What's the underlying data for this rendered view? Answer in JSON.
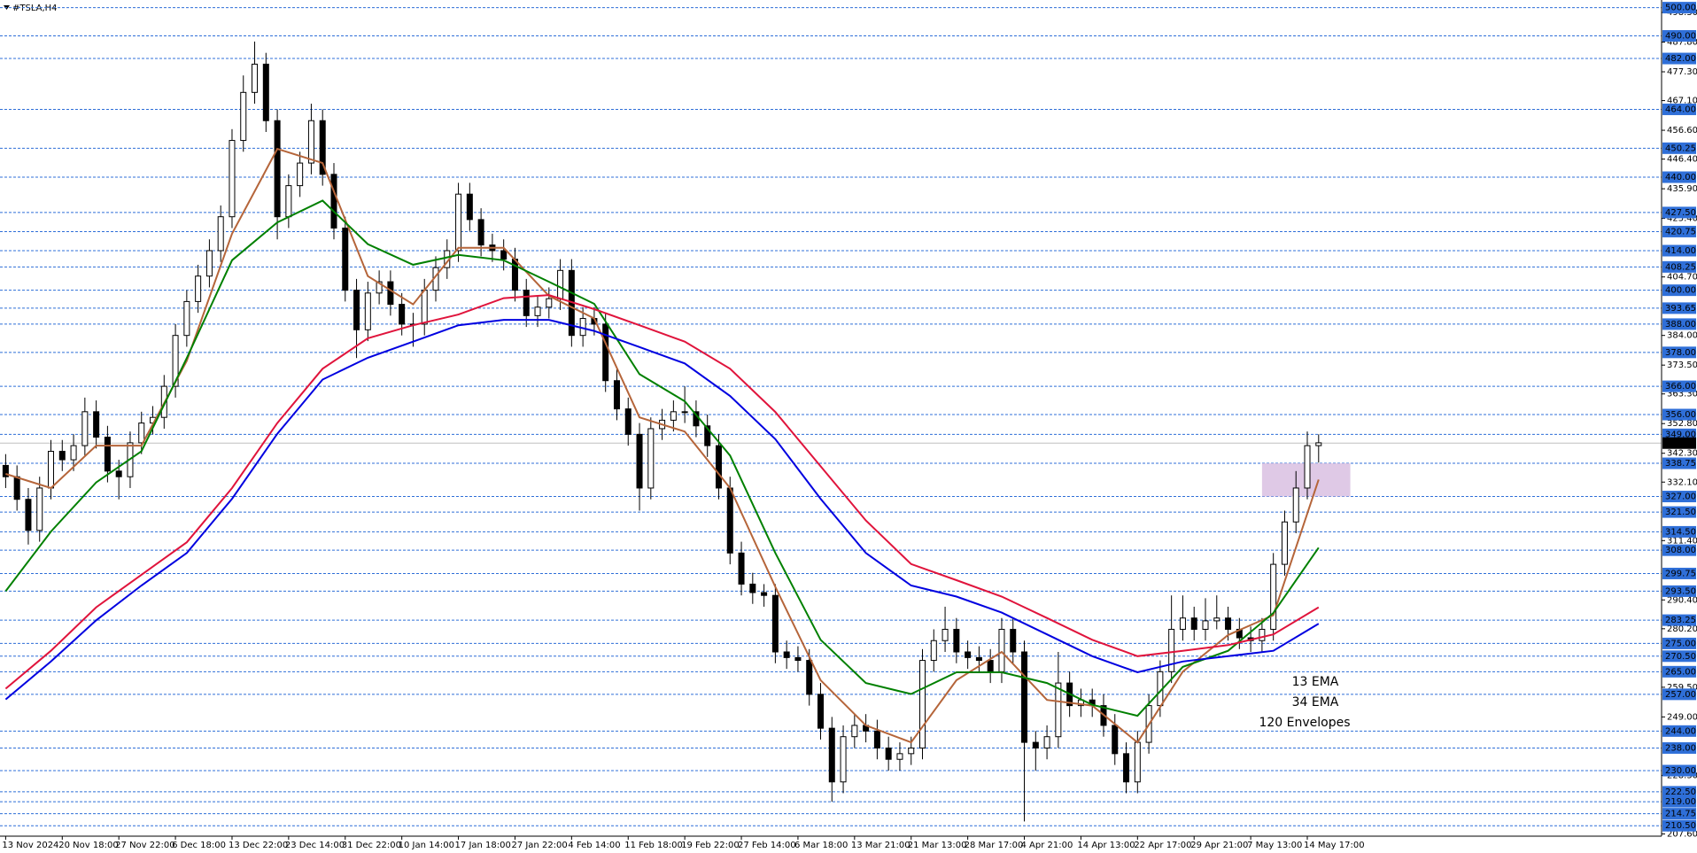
{
  "chart_data": {
    "type": "candlestick",
    "title": "#TSLA,H4",
    "categories": [
      "13 Nov 2024",
      null,
      null,
      null,
      null,
      "20 Nov 18:00",
      null,
      null,
      null,
      null,
      "27 Nov 22:00",
      null,
      null,
      null,
      null,
      "6 Dec 18:00",
      null,
      null,
      null,
      null,
      "13 Dec 22:00",
      null,
      null,
      null,
      null,
      "23 Dec 14:00",
      null,
      null,
      null,
      null,
      "31 Dec 22:00",
      null,
      null,
      null,
      null,
      "10 Jan 14:00",
      null,
      null,
      null,
      null,
      "17 Jan 18:00",
      null,
      null,
      null,
      null,
      "27 Jan 22:00",
      null,
      null,
      null,
      null,
      "4 Feb 14:00",
      null,
      null,
      null,
      null,
      "11 Feb 18:00",
      null,
      null,
      null,
      null,
      "19 Feb 22:00",
      null,
      null,
      null,
      null,
      "27 Feb 14:00",
      null,
      null,
      null,
      null,
      "6 Mar 18:00",
      null,
      null,
      null,
      null,
      "13 Mar 21:00",
      null,
      null,
      null,
      null,
      "21 Mar 13:00",
      null,
      null,
      null,
      null,
      "28 Mar 17:00",
      null,
      null,
      null,
      null,
      "4 Apr 21:00",
      null,
      null,
      null,
      null,
      "14 Apr 13:00",
      null,
      null,
      null,
      null,
      "22 Apr 17:00",
      null,
      null,
      null,
      null,
      "29 Apr 21:00",
      null,
      null,
      null,
      null,
      "7 May 13:00",
      null,
      null,
      null,
      null,
      "14 May 17:00",
      null
    ],
    "candles": [
      [
        338,
        342,
        330,
        334
      ],
      [
        334,
        338,
        322,
        326
      ],
      [
        326,
        330,
        310,
        315
      ],
      [
        315,
        334,
        311,
        330
      ],
      [
        330,
        347,
        326,
        343
      ],
      [
        343,
        347,
        336,
        340
      ],
      [
        340,
        349,
        336,
        345
      ],
      [
        345,
        362,
        341,
        357
      ],
      [
        357,
        361,
        344,
        348
      ],
      [
        348,
        352,
        332,
        336
      ],
      [
        336,
        340,
        326,
        334
      ],
      [
        334,
        350,
        330,
        346
      ],
      [
        346,
        357,
        342,
        353
      ],
      [
        353,
        359,
        349,
        355
      ],
      [
        355,
        370,
        351,
        366
      ],
      [
        366,
        388,
        362,
        384
      ],
      [
        384,
        400,
        380,
        396
      ],
      [
        396,
        409,
        392,
        405
      ],
      [
        405,
        418,
        401,
        414
      ],
      [
        414,
        430,
        410,
        426
      ],
      [
        426,
        457,
        422,
        453
      ],
      [
        453,
        476,
        449,
        470
      ],
      [
        470,
        488,
        466,
        480
      ],
      [
        480,
        484,
        456,
        460
      ],
      [
        460,
        464,
        418,
        426
      ],
      [
        426,
        441,
        422,
        437
      ],
      [
        437,
        449,
        433,
        445
      ],
      [
        445,
        466,
        441,
        460
      ],
      [
        460,
        464,
        437,
        441
      ],
      [
        441,
        445,
        418,
        422
      ],
      [
        422,
        426,
        396,
        400
      ],
      [
        400,
        404,
        376,
        386
      ],
      [
        386,
        403,
        382,
        399
      ],
      [
        399,
        407,
        395,
        403
      ],
      [
        403,
        407,
        391,
        395
      ],
      [
        395,
        399,
        384,
        388
      ],
      [
        388,
        392,
        380,
        388
      ],
      [
        388,
        404,
        384,
        400
      ],
      [
        400,
        412,
        396,
        408
      ],
      [
        408,
        418,
        404,
        414
      ],
      [
        414,
        438,
        410,
        434
      ],
      [
        434,
        438,
        421,
        425
      ],
      [
        425,
        429,
        412,
        416
      ],
      [
        416,
        420,
        410,
        414
      ],
      [
        414,
        418,
        407,
        411
      ],
      [
        411,
        415,
        396,
        400
      ],
      [
        400,
        404,
        387,
        391
      ],
      [
        391,
        398,
        387,
        394
      ],
      [
        394,
        401,
        390,
        397
      ],
      [
        397,
        411,
        393,
        407
      ],
      [
        407,
        411,
        380,
        384
      ],
      [
        384,
        394,
        380,
        390
      ],
      [
        390,
        394,
        384,
        388
      ],
      [
        388,
        392,
        364,
        368
      ],
      [
        368,
        372,
        354,
        358
      ],
      [
        358,
        362,
        345,
        349
      ],
      [
        349,
        353,
        322,
        330
      ],
      [
        330,
        355,
        326,
        351
      ],
      [
        351,
        358,
        347,
        354
      ],
      [
        354,
        361,
        350,
        357
      ],
      [
        357,
        366,
        353,
        357
      ],
      [
        357,
        361,
        348,
        352
      ],
      [
        352,
        356,
        341,
        345
      ],
      [
        345,
        349,
        326,
        330
      ],
      [
        330,
        334,
        303,
        307
      ],
      [
        307,
        311,
        292,
        296
      ],
      [
        296,
        300,
        289,
        293
      ],
      [
        293,
        296,
        288,
        292
      ],
      [
        292,
        296,
        268,
        272
      ],
      [
        272,
        276,
        266,
        270
      ],
      [
        270,
        274,
        265,
        269
      ],
      [
        269,
        273,
        253,
        257
      ],
      [
        257,
        261,
        241,
        245
      ],
      [
        245,
        249,
        219,
        226
      ],
      [
        226,
        246,
        222,
        242
      ],
      [
        242,
        250,
        238,
        246
      ],
      [
        246,
        250,
        240,
        244
      ],
      [
        244,
        248,
        234,
        238
      ],
      [
        238,
        242,
        230,
        234
      ],
      [
        234,
        240,
        230,
        236
      ],
      [
        236,
        242,
        232,
        238
      ],
      [
        238,
        273,
        234,
        269
      ],
      [
        269,
        280,
        265,
        276
      ],
      [
        276,
        288,
        272,
        280
      ],
      [
        280,
        284,
        268,
        272
      ],
      [
        272,
        276,
        266,
        270
      ],
      [
        270,
        274,
        265,
        269
      ],
      [
        269,
        273,
        261,
        265
      ],
      [
        265,
        284,
        261,
        280
      ],
      [
        280,
        284,
        268,
        272
      ],
      [
        272,
        276,
        212,
        240
      ],
      [
        240,
        244,
        230,
        238
      ],
      [
        238,
        246,
        234,
        242
      ],
      [
        242,
        272,
        238,
        261
      ],
      [
        261,
        265,
        249,
        253
      ],
      [
        253,
        259,
        249,
        255
      ],
      [
        255,
        259,
        249,
        253
      ],
      [
        253,
        257,
        242,
        246
      ],
      [
        246,
        250,
        232,
        236
      ],
      [
        236,
        240,
        222,
        226
      ],
      [
        226,
        244,
        222,
        240
      ],
      [
        240,
        257,
        236,
        253
      ],
      [
        253,
        269,
        249,
        265
      ],
      [
        265,
        292,
        261,
        280
      ],
      [
        280,
        292,
        276,
        284
      ],
      [
        284,
        288,
        276,
        280
      ],
      [
        280,
        291,
        276,
        283
      ],
      [
        283,
        292,
        280,
        284
      ],
      [
        284,
        288,
        276,
        280
      ],
      [
        280,
        284,
        273,
        277
      ],
      [
        277,
        281,
        272,
        276
      ],
      [
        276,
        284,
        272,
        280
      ],
      [
        280,
        307,
        276,
        303
      ],
      [
        303,
        322,
        299,
        318
      ],
      [
        318,
        336,
        314,
        330
      ],
      [
        330,
        350,
        326,
        345
      ],
      [
        345,
        349,
        339,
        346
      ]
    ],
    "up_color": "#ffffff",
    "down_color": "#000000",
    "wick_color": "#000000",
    "x": [
      0,
      4,
      8,
      12,
      16,
      20,
      24,
      28,
      32,
      36,
      40,
      44,
      48,
      52,
      56,
      60,
      64,
      68,
      72,
      76,
      80,
      84,
      88,
      92,
      96,
      100,
      104,
      108,
      112,
      116
    ],
    "series": [
      {
        "name": "13 EMA",
        "color": "#b5653a",
        "values": [
          335,
          330,
          345,
          345,
          375,
          420,
          450,
          445,
          405,
          395,
          415,
          415,
          398,
          390,
          355,
          350,
          330,
          295,
          262,
          246,
          240,
          262,
          272,
          255,
          253,
          240,
          265,
          278,
          285,
          333
        ]
      },
      {
        "name": "34 EMA",
        "color": "#008000",
        "values": [
          293.5,
          314.6,
          332,
          343,
          376,
          410.6,
          424,
          431.7,
          416.3,
          409,
          412.5,
          410.6,
          403,
          395.2,
          370.3,
          360.7,
          341.5,
          307,
          276.3,
          261,
          257.1,
          264.8,
          264.8,
          261,
          253.3,
          249.4,
          266.7,
          272.4,
          285.8,
          308.9
        ]
      },
      {
        "name": "120 Envelopes",
        "color": "#e0143c",
        "values": [
          259,
          272.4,
          287.8,
          299.3,
          310.8,
          330,
          353,
          372.2,
          383,
          387.6,
          391.4,
          397.2,
          398.3,
          393.3,
          387.6,
          381.8,
          372.2,
          356.9,
          337.7,
          318.5,
          303.1,
          297.4,
          291.6,
          284,
          276.3,
          270.5,
          272.4,
          274.4,
          278.2,
          287.8
        ]
      },
      {
        "color": "#0000e0",
        "values": [
          255.2,
          268.6,
          283.2,
          295.5,
          307,
          326.2,
          349.2,
          368.4,
          376.1,
          381.8,
          387.6,
          389.5,
          389.5,
          385.6,
          379.9,
          374.1,
          362.6,
          347.3,
          326.2,
          307,
          295.5,
          291.6,
          285.9,
          278.2,
          270.5,
          264.8,
          268.6,
          270.5,
          272.4,
          282
        ]
      }
    ],
    "levels": [
      {
        "value": 500,
        "label": "500.00"
      },
      {
        "value": 490,
        "label": "490.00"
      },
      {
        "value": 482,
        "label": "482.00"
      },
      {
        "value": 464,
        "label": "464.00"
      },
      {
        "value": 450.25,
        "label": "450.25"
      },
      {
        "value": 440,
        "label": "440.00"
      },
      {
        "value": 427.5,
        "label": "427.50"
      },
      {
        "value": 420.75,
        "label": "420.75"
      },
      {
        "value": 414,
        "label": "414.00"
      },
      {
        "value": 408.25,
        "label": "408.25"
      },
      {
        "value": 400,
        "label": "400.00"
      },
      {
        "value": 393.65,
        "label": "393.65"
      },
      {
        "value": 388,
        "label": "388.00"
      },
      {
        "value": 378,
        "label": "378.00"
      },
      {
        "value": 366,
        "label": "366.00"
      },
      {
        "value": 356,
        "label": "356.00"
      },
      {
        "value": 349,
        "label": "349.00"
      },
      {
        "value": 338.75,
        "label": "338.75"
      },
      {
        "value": 327,
        "label": "327.00"
      },
      {
        "value": 321.5,
        "label": "321.50"
      },
      {
        "value": 314.5,
        "label": "314.50"
      },
      {
        "value": 308,
        "label": "308.00"
      },
      {
        "value": 299.75,
        "label": "299.75"
      },
      {
        "value": 293.5,
        "label": "293.50"
      },
      {
        "value": 283.25,
        "label": "283.25"
      },
      {
        "value": 275,
        "label": "275.00"
      },
      {
        "value": 270.5,
        "label": "270.50"
      },
      {
        "value": 265,
        "label": "265.00"
      },
      {
        "value": 257,
        "label": "257.00"
      },
      {
        "value": 244,
        "label": "244.00"
      },
      {
        "value": 238,
        "label": "238.00"
      },
      {
        "value": 230,
        "label": "230.00"
      },
      {
        "value": 222.5,
        "label": "222.50"
      },
      {
        "value": 219,
        "label": "219.00"
      },
      {
        "value": 214.75,
        "label": "214.75"
      },
      {
        "value": 210.5,
        "label": "210.50"
      }
    ],
    "level_color": "#2f6fd8",
    "last_price": {
      "value": 345.9,
      "label": "345.90"
    },
    "zone": {
      "x": [
        111,
        118.8
      ],
      "y": [
        327,
        338.75
      ],
      "color": "#d9bfe2"
    },
    "xlim": [
      -0.5,
      146.3
    ],
    "ylim": [
      206.8,
      502.7
    ],
    "yticks": [
      {
        "value": 498.3,
        "label": "498.30"
      },
      {
        "value": 487.8,
        "label": "487.80"
      },
      {
        "value": 477.3,
        "label": "477.30"
      },
      {
        "value": 467.1,
        "label": "467.10"
      },
      {
        "value": 456.6,
        "label": "456.60"
      },
      {
        "value": 446.4,
        "label": "446.40"
      },
      {
        "value": 435.9,
        "label": "435.90"
      },
      {
        "value": 425.4,
        "label": "425.40"
      },
      {
        "value": 404.7,
        "label": "404.70"
      },
      {
        "value": 384,
        "label": "384.00"
      },
      {
        "value": 373.5,
        "label": "373.50"
      },
      {
        "value": 363.3,
        "label": "363.30"
      },
      {
        "value": 352.8,
        "label": "352.80"
      },
      {
        "value": 342.3,
        "label": "342.30"
      },
      {
        "value": 332.1,
        "label": "332.10"
      },
      {
        "value": 311.4,
        "label": "311.40"
      },
      {
        "value": 290.4,
        "label": "290.40"
      },
      {
        "value": 280.2,
        "label": "280.20"
      },
      {
        "value": 259.5,
        "label": "259.50"
      },
      {
        "value": 249,
        "label": "249.00"
      },
      {
        "value": 228.3,
        "label": "228.30"
      },
      {
        "value": 207.6,
        "label": "207.60"
      }
    ]
  }
}
